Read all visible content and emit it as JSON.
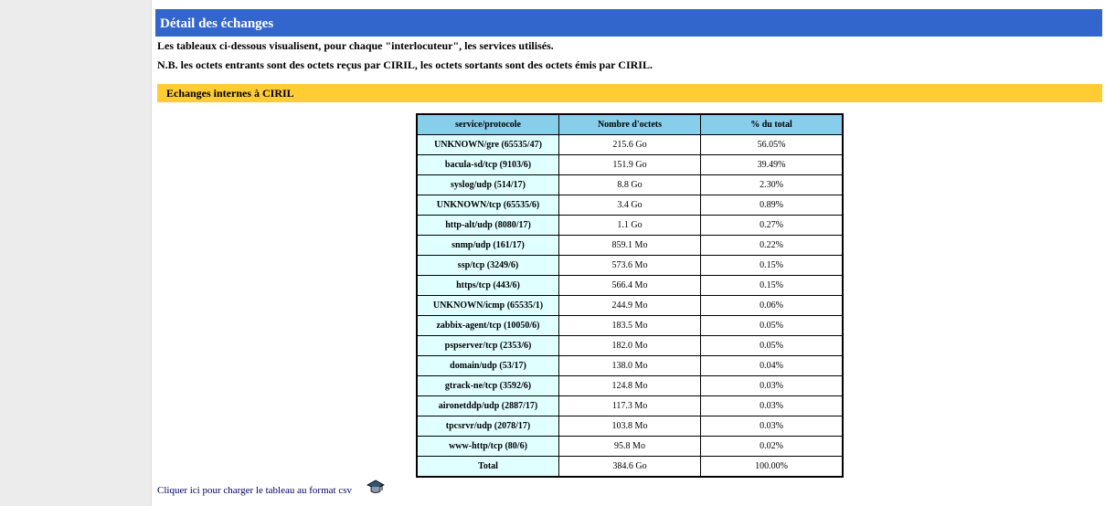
{
  "header": {
    "title": "Détail des échanges"
  },
  "intro": [
    "Les tableaux ci-dessous visualisent, pour chaque \"interlocuteur\", les services utilisés.",
    "N.B. les octets entrants sont des octets reçus par CIRIL, les octets sortants sont des octets émis par CIRIL."
  ],
  "section": {
    "title": "Echanges internes à CIRIL"
  },
  "table": {
    "columns": [
      "service/protocole",
      "Nombre d'octets",
      "% du total"
    ],
    "rows": [
      [
        "UNKNOWN/gre (65535/47)",
        "215.6 Go",
        "56.05%"
      ],
      [
        "bacula-sd/tcp (9103/6)",
        "151.9 Go",
        "39.49%"
      ],
      [
        "syslog/udp (514/17)",
        "8.8 Go",
        "2.30%"
      ],
      [
        "UNKNOWN/tcp (65535/6)",
        "3.4 Go",
        "0.89%"
      ],
      [
        "http-alt/udp (8080/17)",
        "1.1 Go",
        "0.27%"
      ],
      [
        "snmp/udp (161/17)",
        "859.1 Mo",
        "0.22%"
      ],
      [
        "ssp/tcp (3249/6)",
        "573.6 Mo",
        "0.15%"
      ],
      [
        "https/tcp (443/6)",
        "566.4 Mo",
        "0.15%"
      ],
      [
        "UNKNOWN/icmp (65535/1)",
        "244.9 Mo",
        "0.06%"
      ],
      [
        "zabbix-agent/tcp (10050/6)",
        "183.5 Mo",
        "0.05%"
      ],
      [
        "pspserver/tcp (2353/6)",
        "182.0 Mo",
        "0.05%"
      ],
      [
        "domain/udp (53/17)",
        "138.0 Mo",
        "0.04%"
      ],
      [
        "gtrack-ne/tcp (3592/6)",
        "124.8 Mo",
        "0.03%"
      ],
      [
        "aironetddp/udp (2887/17)",
        "117.3 Mo",
        "0.03%"
      ],
      [
        "tpcsrvr/udp (2078/17)",
        "103.8 Mo",
        "0.03%"
      ],
      [
        "www-http/tcp (80/6)",
        "95.8 Mo",
        "0.02%"
      ],
      [
        "Total",
        "384.6 Go",
        "100.00%"
      ]
    ]
  },
  "link": {
    "text": "Cliquer ici pour charger le tableau au format csv"
  }
}
